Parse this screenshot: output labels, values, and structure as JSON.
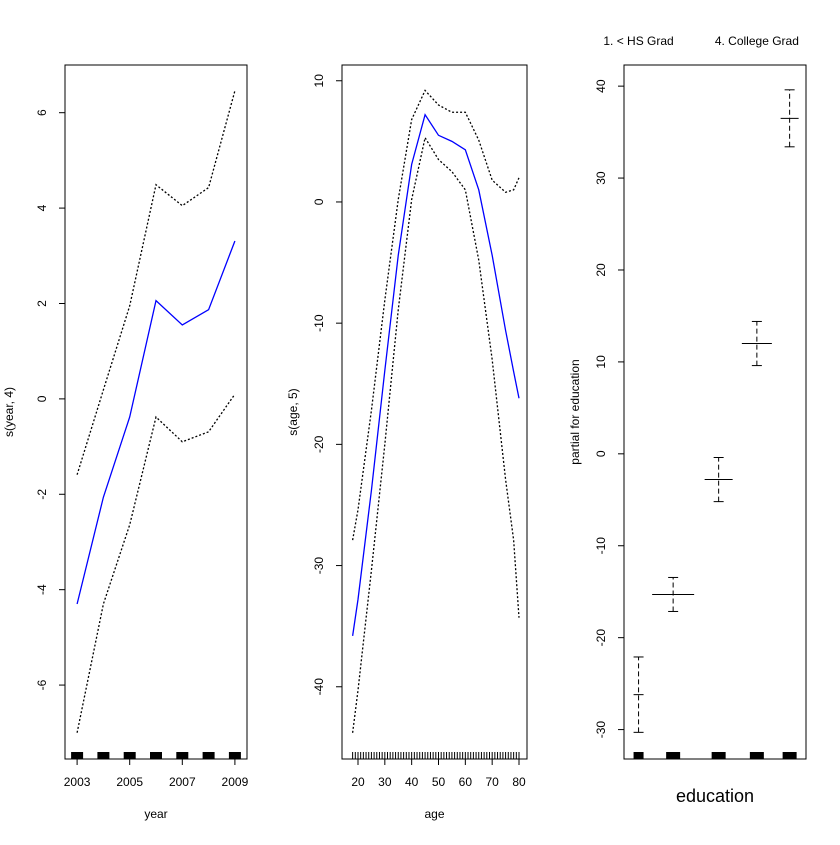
{
  "chart_data": [
    {
      "type": "line",
      "xlabel": "year",
      "ylabel": "s(year, 4)",
      "x": [
        2003,
        2004,
        2005,
        2006,
        2007,
        2008,
        2009
      ],
      "series": [
        {
          "color": "#0000ff",
          "dash": "solid",
          "values": [
            -4.3,
            -2.06,
            -0.38,
            2.06,
            1.55,
            1.87,
            3.31
          ]
        },
        {
          "color": "#000000",
          "dash": "dotted",
          "values": [
            -1.59,
            0.19,
            1.95,
            4.49,
            4.05,
            4.43,
            6.46
          ]
        },
        {
          "color": "#000000",
          "dash": "dotted",
          "values": [
            -7.0,
            -4.3,
            -2.64,
            -0.38,
            -0.9,
            -0.69,
            0.1
          ]
        }
      ],
      "xlim": [
        2002.54,
        2009.46
      ],
      "ylim": [
        -7.55,
        7.0
      ],
      "xticks": [
        2003,
        2005,
        2007,
        2009
      ],
      "yticks": [
        -6,
        -4,
        -2,
        0,
        2,
        4,
        6
      ],
      "rug": [
        2003,
        2004,
        2005,
        2006,
        2007,
        2008,
        2009
      ]
    },
    {
      "type": "line",
      "xlabel": "age",
      "ylabel": "s(age, 5)",
      "x": [
        18,
        20,
        25,
        30,
        35,
        40,
        45,
        50,
        55,
        60,
        65,
        70,
        75,
        78,
        80
      ],
      "series": [
        {
          "color": "#0000ff",
          "dash": "solid",
          "values": [
            -35.8,
            -32.8,
            -23.8,
            -13.9,
            -4.4,
            3.1,
            7.2,
            5.5,
            5.0,
            4.3,
            1.0,
            -4.4,
            -10.6,
            -14.0,
            -16.2
          ]
        },
        {
          "color": "#000000",
          "dash": "dotted",
          "values": [
            -27.9,
            -25.4,
            -17.2,
            -8.1,
            0.2,
            6.8,
            9.2,
            8.0,
            7.4,
            7.4,
            5.1,
            1.8,
            0.8,
            1.0,
            2.0
          ]
        },
        {
          "color": "#000000",
          "dash": "dotted",
          "values": [
            -43.8,
            -40.3,
            -30.4,
            -20.0,
            -8.9,
            0.2,
            5.3,
            3.5,
            2.5,
            1.0,
            -4.8,
            -13.0,
            -22.9,
            -27.9,
            -34.3
          ]
        }
      ],
      "xlim": [
        14.04,
        82.98
      ],
      "ylim": [
        -45.96,
        11.3
      ],
      "xticks": [
        20,
        30,
        40,
        50,
        60,
        70,
        80
      ],
      "yticks": [
        -40,
        -30,
        -20,
        -10,
        0,
        10
      ],
      "rug": [
        18,
        19,
        20,
        21,
        22,
        23,
        24,
        25,
        26,
        27,
        28,
        29,
        30,
        31,
        32,
        33,
        34,
        35,
        36,
        37,
        38,
        39,
        40,
        41,
        42,
        43,
        44,
        45,
        46,
        47,
        48,
        49,
        50,
        51,
        52,
        53,
        54,
        55,
        56,
        57,
        58,
        59,
        60,
        61,
        62,
        63,
        64,
        65,
        66,
        67,
        68,
        69,
        70,
        71,
        72,
        73,
        74,
        75,
        76,
        77,
        78,
        79,
        80
      ]
    },
    {
      "type": "errorbar",
      "xlabel": "education",
      "ylabel": "partial for education",
      "categories": [
        "1. < HS Grad",
        null,
        null,
        "4. College Grad",
        null
      ],
      "values": [
        -26.2,
        -15.3,
        -2.8,
        12.0,
        36.5
      ],
      "errors": [
        4.1,
        1.85,
        2.4,
        2.4,
        3.1
      ],
      "color": "#000000",
      "ylim": [
        -33.2,
        42.3
      ],
      "yticks": [
        -30,
        -20,
        -10,
        0,
        10,
        20,
        30,
        40
      ]
    }
  ]
}
